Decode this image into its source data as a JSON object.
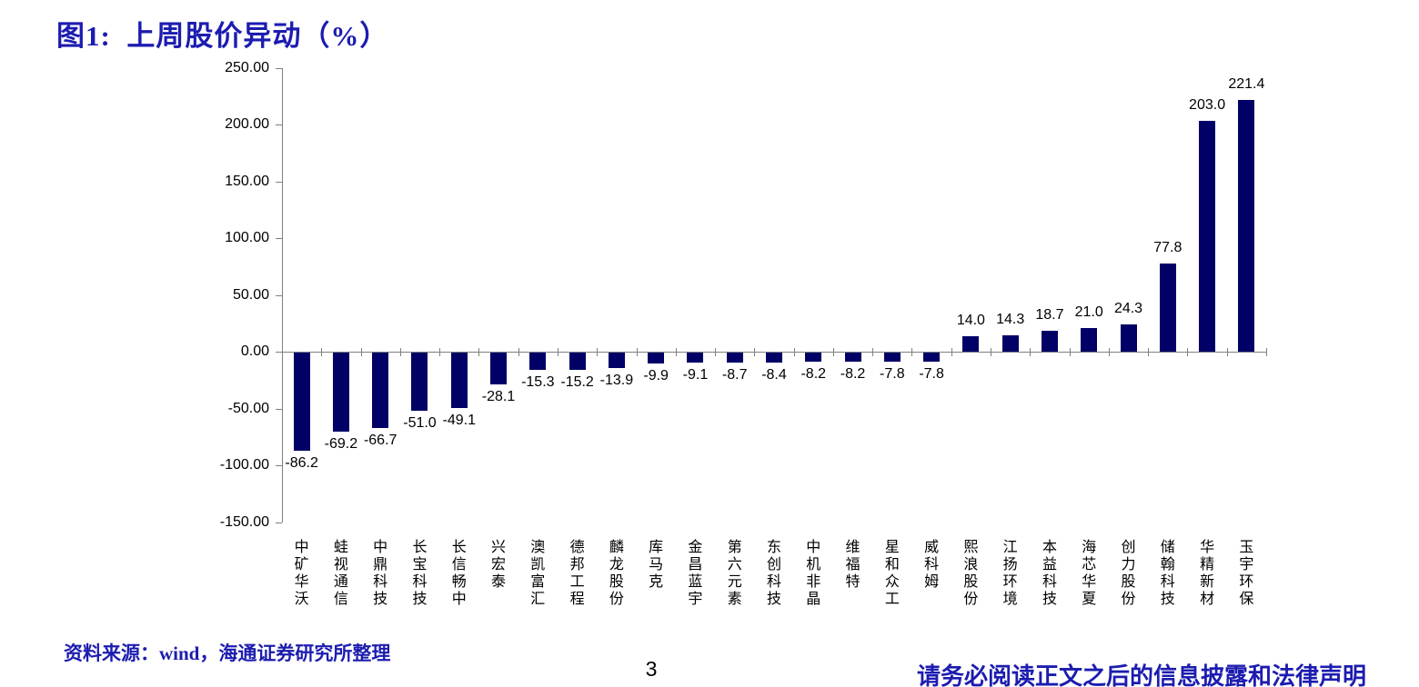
{
  "figure": {
    "title": "图1:  上周股价异动（%）"
  },
  "footer": {
    "source_note": "资料来源：wind，海通证券研究所整理",
    "page_number": "3",
    "disclaimer": "请务必阅读正文之后的信息披露和法律声明"
  },
  "colors": {
    "accent_blue": "#1c1cb0",
    "bar_fill": "#000066",
    "axis_gray": "#808080",
    "text_black": "#000000",
    "background": "#ffffff"
  },
  "chart_data": {
    "type": "bar",
    "title": "图1: 上周股价异动（%）",
    "categories": [
      "中矿华沃",
      "蛙视通信",
      "中鼎科技",
      "长宝科技",
      "长信畅中",
      "兴宏泰",
      "澳凯富汇",
      "德邦工程",
      "麟龙股份",
      "库马克",
      "金昌蓝宇",
      "第六元素",
      "东创科技",
      "中机非晶",
      "维福特",
      "星和众工",
      "威科姆",
      "熙浪股份",
      "江扬环境",
      "本益科技",
      "海芯华夏",
      "创力股份",
      "储翰科技",
      "华精新材",
      "玉宇环保"
    ],
    "values": [
      -86.2,
      -69.2,
      -66.7,
      -51.0,
      -49.1,
      -28.1,
      -15.3,
      -15.2,
      -13.9,
      -9.9,
      -9.1,
      -8.7,
      -8.4,
      -8.2,
      -8.2,
      -7.8,
      -7.8,
      14.0,
      14.3,
      18.7,
      21.0,
      24.3,
      77.8,
      203.0,
      221.4
    ],
    "value_labels": [
      "-86.2",
      "-69.2",
      "-66.7",
      "-51.0",
      "-49.1",
      "-28.1",
      "-15.3",
      "-15.2",
      "-13.9",
      "-9.9",
      "-9.1",
      "-8.7",
      "-8.4",
      "-8.2",
      "-8.2",
      "-7.8",
      "-7.8",
      "14.0",
      "14.3",
      "18.7",
      "21.0",
      "24.3",
      "77.8",
      "203.0",
      "221.4"
    ],
    "yticks": [
      250,
      200,
      150,
      100,
      50,
      0,
      -50,
      -100,
      -150
    ],
    "ytick_labels": [
      "250.00",
      "200.00",
      "150.00",
      "100.00",
      "50.00",
      "0.00",
      "-50.00",
      "-100.00",
      "-150.00"
    ],
    "ylim": [
      -150,
      250
    ],
    "xlabel": "",
    "ylabel": "",
    "grid": false,
    "legend_position": "none",
    "bar_color": "#000066"
  }
}
